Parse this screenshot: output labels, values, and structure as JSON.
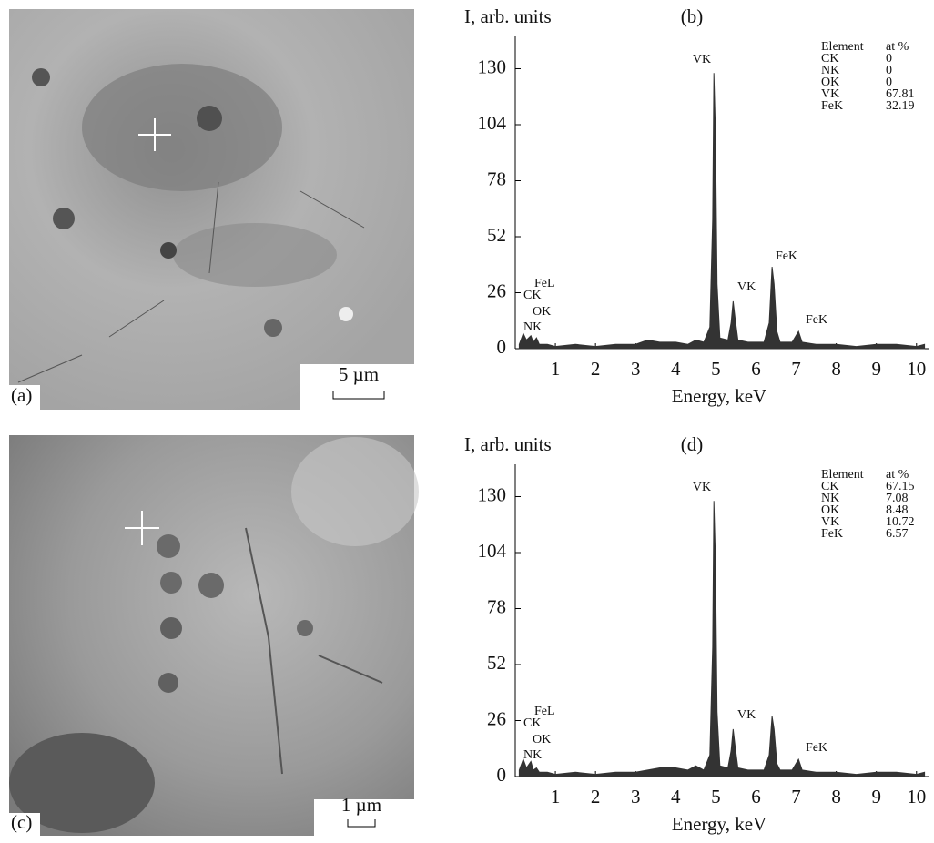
{
  "images": [
    {
      "label": "(a)",
      "scale_bar": "5 µm"
    },
    {
      "label": "(c)",
      "scale_bar": "1 µm"
    }
  ],
  "chart_data": [
    {
      "type": "line",
      "panel": "(b)",
      "ylabel": "I, arb. units",
      "xlabel": "Energy, keV",
      "color": "#333333",
      "xlim": [
        0,
        10.3
      ],
      "ylim": [
        0,
        145
      ],
      "xticks": [
        1,
        2,
        3,
        4,
        5,
        6,
        7,
        8,
        9,
        10
      ],
      "yticks": [
        0,
        26,
        52,
        78,
        104,
        130
      ],
      "x": [
        0.1,
        0.2,
        0.28,
        0.39,
        0.45,
        0.53,
        0.6,
        0.8,
        1.0,
        1.5,
        2.0,
        2.5,
        3.0,
        3.3,
        3.6,
        4.0,
        4.3,
        4.5,
        4.7,
        4.85,
        4.92,
        4.95,
        4.99,
        5.03,
        5.1,
        5.3,
        5.38,
        5.43,
        5.48,
        5.55,
        5.8,
        6.2,
        6.33,
        6.4,
        6.45,
        6.52,
        6.6,
        6.9,
        7.06,
        7.15,
        7.5,
        8.0,
        8.5,
        9.0,
        9.5,
        10.0,
        10.2
      ],
      "values": [
        2,
        7,
        4,
        6,
        3,
        5,
        2,
        2,
        1,
        2,
        1,
        2,
        2,
        4,
        3,
        3,
        2,
        4,
        3,
        10,
        60,
        128,
        100,
        30,
        5,
        4,
        12,
        22,
        14,
        4,
        3,
        3,
        12,
        38,
        30,
        8,
        3,
        3,
        8,
        3,
        2,
        2,
        1,
        2,
        2,
        1,
        2
      ],
      "annotations": [
        "VK",
        "FeL",
        "CK",
        "OK",
        "NK",
        "VK",
        "FeK",
        "FeK"
      ],
      "table": {
        "header": [
          "Element",
          "at %"
        ],
        "rows": [
          [
            "CK",
            0
          ],
          [
            "NK",
            0
          ],
          [
            "OK",
            0
          ],
          [
            "VK",
            67.81
          ],
          [
            "FeK",
            32.19
          ]
        ]
      }
    },
    {
      "type": "line",
      "panel": "(d)",
      "ylabel": "I, arb. units",
      "xlabel": "Energy, keV",
      "color": "#333333",
      "xlim": [
        0,
        10.3
      ],
      "ylim": [
        0,
        145
      ],
      "xticks": [
        1,
        2,
        3,
        4,
        5,
        6,
        7,
        8,
        9,
        10
      ],
      "yticks": [
        0,
        26,
        52,
        78,
        104,
        130
      ],
      "x": [
        0.1,
        0.2,
        0.28,
        0.39,
        0.45,
        0.53,
        0.6,
        0.8,
        1.0,
        1.5,
        2.0,
        2.5,
        3.0,
        3.3,
        3.6,
        4.0,
        4.3,
        4.5,
        4.7,
        4.85,
        4.92,
        4.95,
        4.99,
        5.03,
        5.1,
        5.3,
        5.38,
        5.43,
        5.48,
        5.55,
        5.8,
        6.2,
        6.33,
        6.4,
        6.45,
        6.52,
        6.6,
        6.9,
        7.06,
        7.15,
        7.5,
        8.0,
        8.5,
        9.0,
        9.5,
        10.0,
        10.2
      ],
      "values": [
        3,
        8,
        4,
        7,
        3,
        4,
        2,
        2,
        1,
        2,
        1,
        2,
        2,
        3,
        4,
        4,
        3,
        5,
        3,
        10,
        60,
        128,
        100,
        30,
        5,
        4,
        12,
        22,
        14,
        4,
        3,
        3,
        10,
        28,
        22,
        6,
        3,
        3,
        8,
        3,
        2,
        2,
        1,
        2,
        2,
        1,
        2
      ],
      "annotations": [
        "VK",
        "FeL",
        "CK",
        "OK",
        "NK",
        "VK",
        "FeK"
      ],
      "table": {
        "header": [
          "Element",
          "at %"
        ],
        "rows": [
          [
            "CK",
            67.15
          ],
          [
            "NK",
            7.08
          ],
          [
            "OK",
            8.48
          ],
          [
            "VK",
            10.72
          ],
          [
            "FeK",
            6.57
          ]
        ]
      }
    }
  ]
}
